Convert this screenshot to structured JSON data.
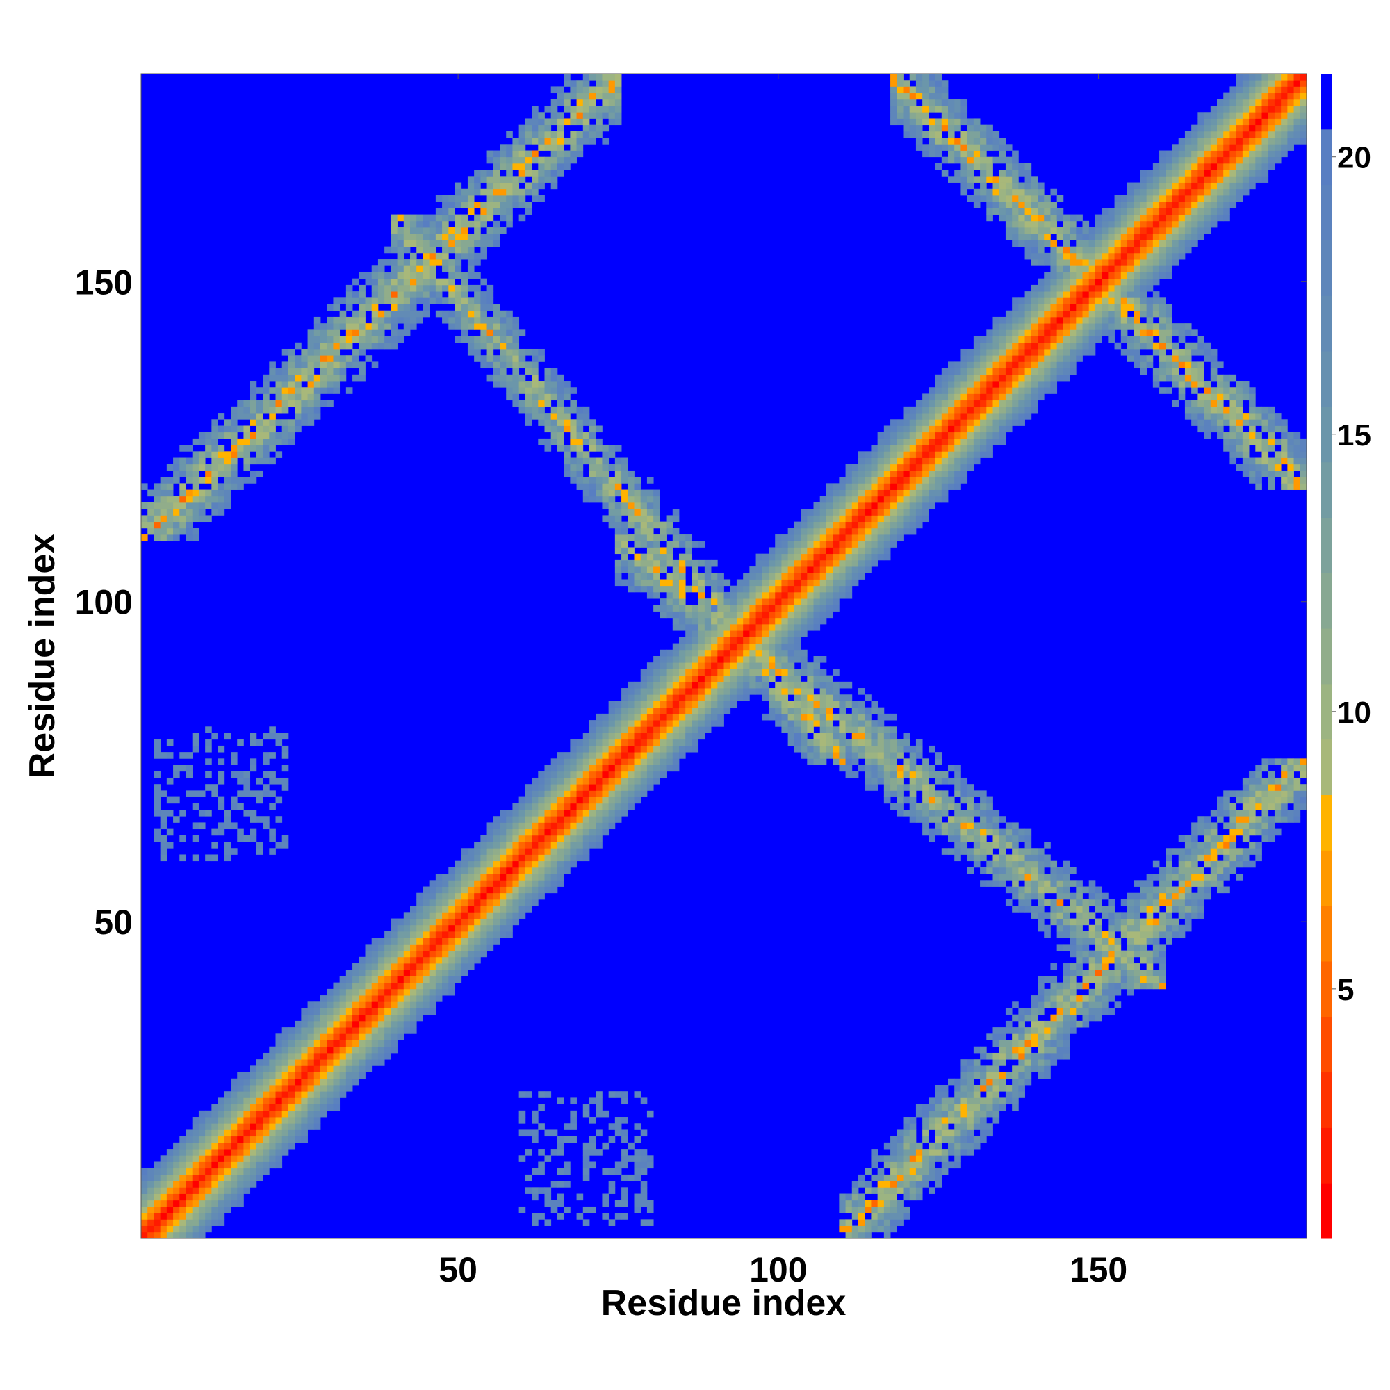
{
  "chart_data": {
    "type": "heatmap",
    "title": "",
    "xlabel": "Residue index",
    "ylabel": "Residue index",
    "xlim": [
      1,
      182
    ],
    "ylim": [
      1,
      182
    ],
    "x_ticks": [
      50,
      100,
      150
    ],
    "y_ticks": [
      50,
      100,
      150
    ],
    "grid": false,
    "description_of_values": "symmetric residue distance map; values capped near 21",
    "colorbar": {
      "ticks": [
        5,
        10,
        15,
        20
      ],
      "range": [
        0.5,
        21.5
      ],
      "levels": [
        {
          "upto": 1.5,
          "color": "#ff0000"
        },
        {
          "upto": 2.5,
          "color": "#ff1a00"
        },
        {
          "upto": 3.5,
          "color": "#ff3300"
        },
        {
          "upto": 4.5,
          "color": "#ff4d00"
        },
        {
          "upto": 5.5,
          "color": "#ff6600"
        },
        {
          "upto": 6.5,
          "color": "#ff8000"
        },
        {
          "upto": 7.5,
          "color": "#ff9900"
        },
        {
          "upto": 8.5,
          "color": "#ffb300"
        },
        {
          "upto": 9.5,
          "color": "#a8b87a"
        },
        {
          "upto": 10.5,
          "color": "#9cb482"
        },
        {
          "upto": 11.5,
          "color": "#91ad8a"
        },
        {
          "upto": 12.5,
          "color": "#87a892"
        },
        {
          "upto": 13.5,
          "color": "#7da29b"
        },
        {
          "upto": 14.5,
          "color": "#739ca3"
        },
        {
          "upto": 15.5,
          "color": "#6b96aa"
        },
        {
          "upto": 16.5,
          "color": "#6690b0"
        },
        {
          "upto": 17.5,
          "color": "#628bb5"
        },
        {
          "upto": 18.5,
          "color": "#5e86ba"
        },
        {
          "upto": 19.5,
          "color": "#5b82be"
        },
        {
          "upto": 20.5,
          "color": "#587ec2"
        },
        {
          "upto": 21.5,
          "color": "#0000ff"
        }
      ]
    },
    "structure": {
      "n": 182,
      "background_value": 21,
      "main_diagonal": {
        "from": 1,
        "to": 182,
        "core_value": 1,
        "band_halfwidth": 9
      },
      "contact_bands": [
        {
          "x": [
            1,
            75
          ],
          "y": [
            110,
            182
          ],
          "center_min": 5,
          "halfwidth": 8
        },
        {
          "x": [
            110,
            182
          ],
          "y": [
            1,
            75
          ],
          "center_min": 5,
          "halfwidth": 8
        },
        {
          "x": [
            40,
            110
          ],
          "y": [
            75,
            160
          ],
          "center_min": 6,
          "halfwidth": 7
        },
        {
          "x": [
            75,
            160
          ],
          "y": [
            40,
            110
          ],
          "center_min": 6,
          "halfwidth": 7
        },
        {
          "x": [
            118,
            182
          ],
          "y": [
            118,
            182
          ],
          "center_min": 5,
          "halfwidth": 7
        }
      ],
      "sparse_patches": [
        {
          "x": [
            3,
            23
          ],
          "y": [
            60,
            80
          ]
        },
        {
          "x": [
            60,
            80
          ],
          "y": [
            3,
            23
          ]
        }
      ]
    }
  }
}
